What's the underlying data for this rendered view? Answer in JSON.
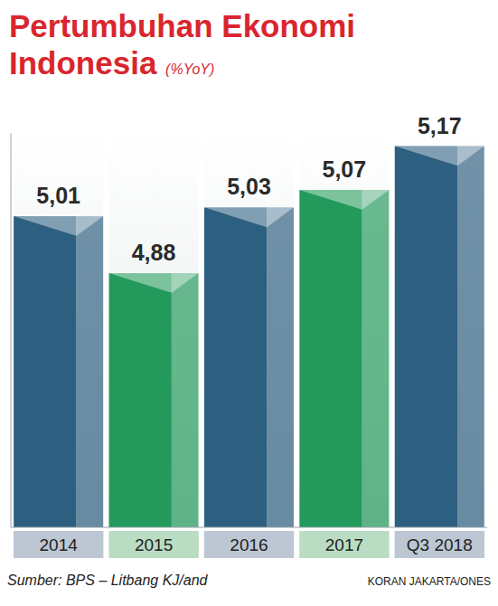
{
  "chart_data": {
    "type": "bar",
    "title": "Pertumbuhan Ekonomi Indonesia",
    "subtitle": "(%YoY)",
    "categories": [
      "2014",
      "2015",
      "2016",
      "2017",
      "Q3 2018"
    ],
    "values": [
      5.01,
      4.88,
      5.03,
      5.07,
      5.17
    ],
    "value_labels": [
      "5,01",
      "4,88",
      "5,03",
      "5,07",
      "5,17"
    ],
    "colors": [
      "#2d5f80",
      "#239a5c",
      "#2d5f80",
      "#239a5c",
      "#2d5f80"
    ],
    "ylim": [
      4.3,
      5.2
    ],
    "grid": false,
    "data_labels": true,
    "tick_labels": "x",
    "source": "Sumber: BPS – Litbang KJ/and",
    "credit": "KORAN JAKARTA/ONES"
  }
}
